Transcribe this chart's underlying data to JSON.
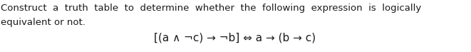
{
  "line1": "Construct  a  truth  table  to  determine  whether  the  following  expression  is  logically",
  "line2": "equivalent or not.",
  "formula": "[(a ∧ ¬c) → ¬b] ⇔ a → (b → c)",
  "background_color": "#ffffff",
  "text_color": "#1a1a1a",
  "font_size_body": 9.5,
  "font_size_formula": 11.0,
  "fig_width": 6.61,
  "fig_height": 0.73,
  "dpi": 100
}
